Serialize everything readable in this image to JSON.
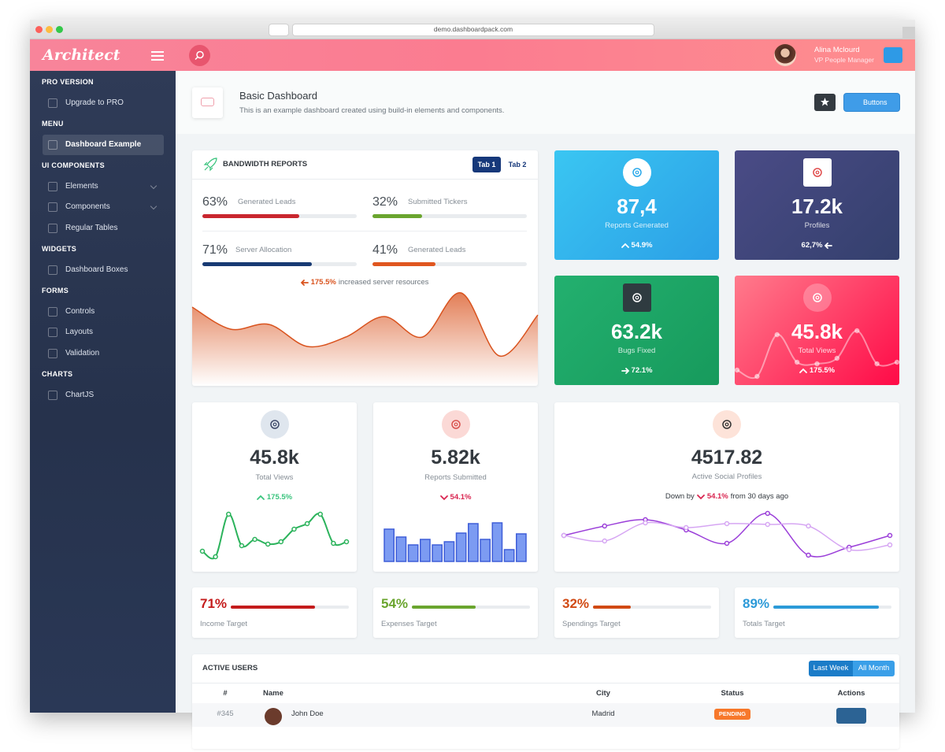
{
  "browser": {
    "url": "demo.dashboardpack.com"
  },
  "header": {
    "logo": "Architect",
    "user_name": "Alina Mclourd",
    "user_role": "VP People Manager"
  },
  "sidebar": {
    "sections": [
      {
        "heading": "PRO VERSION",
        "items": [
          {
            "label": "Upgrade to PRO"
          }
        ]
      },
      {
        "heading": "MENU",
        "items": [
          {
            "label": "Dashboard Example",
            "active": true
          }
        ]
      },
      {
        "heading": "UI COMPONENTS",
        "items": [
          {
            "label": "Elements",
            "submenu": true
          },
          {
            "label": "Components",
            "submenu": true
          },
          {
            "label": "Regular Tables"
          }
        ]
      },
      {
        "heading": "WIDGETS",
        "items": [
          {
            "label": "Dashboard Boxes"
          }
        ]
      },
      {
        "heading": "FORMS",
        "items": [
          {
            "label": "Controls"
          },
          {
            "label": "Layouts"
          },
          {
            "label": "Validation"
          }
        ]
      },
      {
        "heading": "CHARTS",
        "items": [
          {
            "label": "ChartJS"
          }
        ]
      }
    ]
  },
  "page_title": {
    "title": "Basic Dashboard",
    "subtitle": "This is an example dashboard created using build-in elements and components.",
    "button": "Buttons"
  },
  "bandwidth": {
    "title": "BANDWIDTH REPORTS",
    "tabs": [
      "Tab 1",
      "Tab 2"
    ],
    "progress": [
      {
        "label": "63%",
        "value": 63,
        "name": "Generated Leads",
        "color": "#c9262e"
      },
      {
        "label": "32%",
        "value": 32,
        "name": "Submitted Tickers",
        "color": "#6aa52e"
      },
      {
        "label": "71%",
        "value": 71,
        "name": "Server Allocation",
        "color": "#183a73"
      },
      {
        "label": "41%",
        "value": 41,
        "name": "Generated Leads",
        "color": "#e0561f"
      }
    ],
    "note": {
      "change": "175.5%",
      "text": "increased server resources",
      "trend": "left",
      "color": "#d9531e"
    },
    "area": {
      "type": "area",
      "values": [
        100,
        72,
        78,
        50,
        62,
        88,
        62,
        118,
        38,
        90
      ],
      "ylim": [
        0,
        140
      ],
      "color": "#d9531e"
    }
  },
  "tiles": [
    {
      "value": "87,4",
      "label": "Reports Generated",
      "change": "54.9%",
      "trend": "up",
      "colors": [
        "#3ac6f2",
        "#2b9fe6"
      ],
      "icon": "circle",
      "icon_bg": "#ffffff",
      "icon_color": "#2ba9ea"
    },
    {
      "value": "17.2k",
      "label": "Profiles",
      "change": "62,7%",
      "trend": "left",
      "colors": [
        "#4a4b86",
        "#34406d"
      ],
      "icon": "square",
      "icon_bg": "#ffffff",
      "icon_color": "#e04b4b"
    },
    {
      "value": "63.2k",
      "label": "Bugs Fixed",
      "change": "72.1%",
      "trend": "right",
      "colors": [
        "#23b06f",
        "#179a5c"
      ],
      "icon": "square",
      "icon_bg": "#2f3b40",
      "icon_color": "#ffffff"
    },
    {
      "value": "45.8k",
      "label": "Total Views",
      "change": "175.5%",
      "trend": "up",
      "colors": [
        "#ff7b8c",
        "#ff0a47"
      ],
      "icon": "circle",
      "icon_bg": "rgba(255,255,255,0.25)",
      "icon_color": "#ffffff",
      "chart": {
        "type": "line",
        "values": [
          20,
          12,
          65,
          30,
          28,
          35,
          70,
          28,
          30
        ],
        "ylim": [
          0,
          90
        ],
        "color": "rgba(255,255,255,0.45)"
      }
    }
  ],
  "widgets": [
    {
      "value": "45.8k",
      "label": "Total Views",
      "change": "175.5%",
      "trend": "up",
      "change_color": "#3ac47d",
      "icon_bg": "#dfe6ee",
      "icon_color": "#3f4a6b",
      "chart": {
        "type": "line",
        "values": [
          15,
          8,
          62,
          22,
          30,
          24,
          27,
          43,
          50,
          62,
          25,
          27
        ],
        "ylim": [
          0,
          70
        ],
        "color": "#2cb35c"
      }
    },
    {
      "value": "5.82k",
      "label": "Reports Submitted",
      "change": "54.1%",
      "trend": "down",
      "change_color": "#d92550",
      "icon_bg": "#fbd9d6",
      "icon_color": "#d9534f",
      "chart": {
        "type": "bar",
        "values": [
          41,
          31,
          21,
          28,
          21,
          25,
          36,
          48,
          28,
          49,
          15,
          35
        ],
        "ylim": [
          0,
          60
        ],
        "color": "#7c9bf2",
        "stroke": "#3f5ed8"
      }
    }
  ],
  "social": {
    "value": "4517.82",
    "label": "Active Social Profiles",
    "prefix": "Down by",
    "change": "54.1%",
    "trend": "down",
    "change_color": "#d92550",
    "suffix": "from 30 days ago",
    "icon_bg": "#fde3d9",
    "icon_color": "#333333",
    "chart": {
      "type": "line",
      "ylim": [
        0,
        80
      ],
      "series": [
        {
          "color": "#9b3fd9",
          "values": [
            40,
            52,
            60,
            47,
            30,
            68,
            15,
            25,
            40
          ]
        },
        {
          "color": "#d6a6f3",
          "values": [
            40,
            33,
            56,
            50,
            55,
            54,
            52,
            22,
            28
          ]
        }
      ]
    }
  },
  "targets": [
    {
      "label": "71%",
      "value": 71,
      "name": "Income Target",
      "color": "#c41c1c"
    },
    {
      "label": "54%",
      "value": 54,
      "name": "Expenses Target",
      "color": "#6aa52e"
    },
    {
      "label": "32%",
      "value": 32,
      "name": "Spendings Target",
      "color": "#d14a14"
    },
    {
      "label": "89%",
      "value": 89,
      "name": "Totals Target",
      "color": "#2c9ad8"
    }
  ],
  "active_users": {
    "title": "ACTIVE USERS",
    "buttons": [
      "Last Week",
      "All Month"
    ],
    "columns": [
      "#",
      "Name",
      "City",
      "Status",
      "Actions"
    ],
    "rows": [
      [
        "#345",
        "John Doe",
        "Madrid",
        "PENDING"
      ]
    ]
  }
}
